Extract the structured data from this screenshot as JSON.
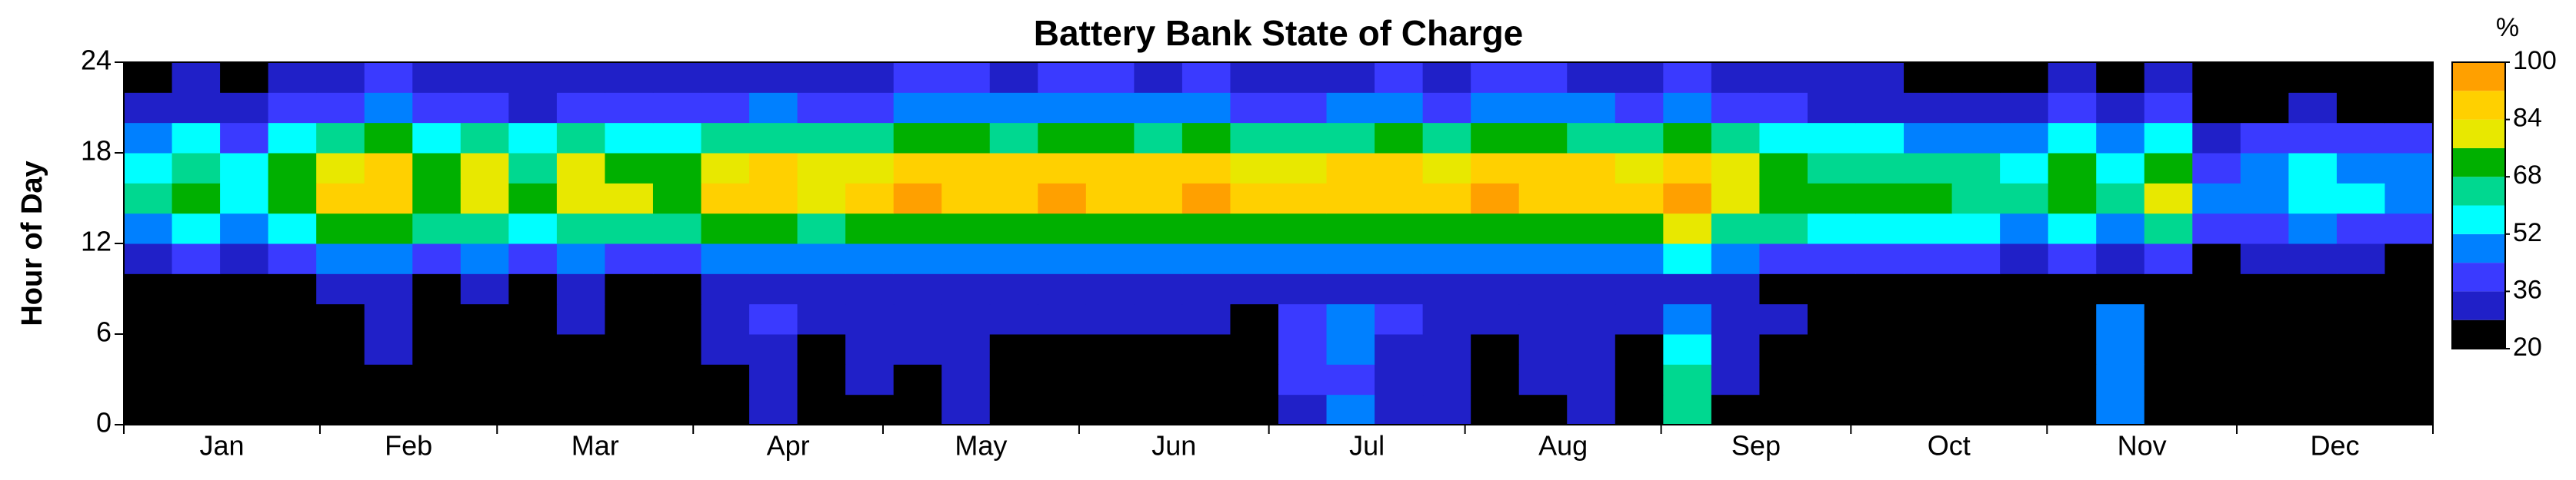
{
  "chart_data": {
    "type": "heatmap",
    "title": "Battery Bank State of Charge",
    "ylabel": "Hour of Day",
    "colorbar_label": "%",
    "xlim": [
      0,
      365
    ],
    "xticks": [
      0,
      31,
      59,
      90,
      120,
      151,
      181,
      212,
      243,
      273,
      304,
      334,
      365
    ],
    "categories": [
      "Jan",
      "Feb",
      "Mar",
      "Apr",
      "May",
      "Jun",
      "Jul",
      "Aug",
      "Sep",
      "Oct",
      "Nov",
      "Dec"
    ],
    "ylim": [
      0,
      24
    ],
    "yticks": [
      0,
      6,
      12,
      18,
      24
    ],
    "y_edges": [
      0,
      2,
      4,
      6,
      8,
      10,
      12,
      14,
      16,
      18,
      20,
      22,
      24
    ],
    "clim": [
      20,
      100
    ],
    "cticks": [
      20,
      36,
      52,
      68,
      84,
      100
    ],
    "levels": [
      20,
      28,
      36,
      44,
      52,
      60,
      68,
      76,
      84,
      92,
      100
    ],
    "colors": [
      "#000000",
      "#2020c8",
      "#3a3aff",
      "#0080ff",
      "#00ffff",
      "#00d890",
      "#00b000",
      "#e8e800",
      "#ffd000",
      "#ffa000",
      "#ff0000"
    ],
    "z": [
      [
        22,
        22,
        22,
        22,
        22,
        22,
        22,
        22,
        22,
        22,
        22,
        22,
        22,
        30,
        22,
        22,
        22,
        28,
        22,
        22,
        22,
        22,
        22,
        22,
        35,
        45,
        30,
        28,
        22,
        22,
        30,
        22,
        62,
        22,
        22,
        22,
        22,
        22,
        22,
        22,
        22,
        50,
        22,
        22,
        22,
        22,
        22,
        22
      ],
      [
        22,
        22,
        22,
        22,
        22,
        22,
        22,
        22,
        22,
        22,
        22,
        22,
        22,
        32,
        22,
        30,
        22,
        30,
        22,
        22,
        22,
        22,
        22,
        22,
        38,
        42,
        33,
        30,
        22,
        30,
        28,
        22,
        60,
        30,
        22,
        22,
        22,
        22,
        22,
        22,
        22,
        50,
        22,
        22,
        22,
        22,
        22,
        22
      ],
      [
        22,
        22,
        22,
        22,
        22,
        30,
        22,
        22,
        22,
        22,
        22,
        22,
        30,
        35,
        22,
        32,
        30,
        32,
        22,
        22,
        22,
        22,
        22,
        22,
        40,
        45,
        35,
        32,
        22,
        32,
        30,
        22,
        55,
        32,
        22,
        22,
        22,
        22,
        22,
        22,
        22,
        48,
        22,
        22,
        22,
        22,
        22,
        22
      ],
      [
        22,
        22,
        22,
        22,
        22,
        32,
        22,
        22,
        22,
        28,
        22,
        22,
        32,
        38,
        30,
        34,
        32,
        35,
        30,
        28,
        30,
        28,
        30,
        22,
        42,
        48,
        38,
        34,
        30,
        34,
        32,
        30,
        50,
        34,
        28,
        22,
        22,
        22,
        22,
        22,
        22,
        45,
        22,
        22,
        22,
        22,
        22,
        22
      ],
      [
        22,
        25,
        22,
        25,
        30,
        32,
        26,
        28,
        25,
        29,
        27,
        26,
        30,
        31,
        28,
        30,
        32,
        32,
        31,
        32,
        32,
        31,
        32,
        30,
        30,
        31,
        32,
        30,
        32,
        32,
        31,
        30,
        34,
        28,
        26,
        25,
        25,
        24,
        23,
        22,
        25,
        22,
        27,
        22,
        22,
        22,
        22,
        22
      ],
      [
        33,
        39,
        30,
        40,
        47,
        50,
        41,
        44,
        39,
        45,
        43,
        41,
        47,
        48,
        44,
        47,
        51,
        50,
        48,
        51,
        50,
        48,
        51,
        47,
        47,
        48,
        50,
        47,
        51,
        50,
        48,
        47,
        53,
        44,
        41,
        39,
        39,
        37,
        36,
        33,
        40,
        33,
        43,
        25,
        28,
        30,
        29,
        26
      ],
      [
        48,
        56,
        44,
        58,
        68,
        72,
        60,
        64,
        56,
        66,
        62,
        60,
        68,
        70,
        64,
        68,
        74,
        72,
        70,
        74,
        72,
        70,
        74,
        68,
        68,
        70,
        72,
        69,
        74,
        72,
        70,
        68,
        77,
        64,
        60,
        56,
        56,
        54,
        52,
        48,
        58,
        48,
        62,
        36,
        40,
        44,
        42,
        38
      ],
      [
        60,
        70,
        55,
        72,
        85,
        90,
        75,
        80,
        70,
        82,
        78,
        75,
        85,
        88,
        80,
        85,
        92,
        90,
        88,
        92,
        90,
        88,
        92,
        85,
        85,
        88,
        90,
        86,
        92,
        90,
        88,
        85,
        96,
        80,
        75,
        70,
        70,
        68,
        65,
        60,
        72,
        60,
        78,
        45,
        50,
        55,
        52,
        48
      ],
      [
        57,
        67,
        52,
        68,
        81,
        86,
        71,
        76,
        67,
        78,
        74,
        71,
        81,
        84,
        76,
        81,
        87,
        86,
        84,
        87,
        86,
        84,
        87,
        81,
        81,
        84,
        86,
        82,
        87,
        86,
        84,
        81,
        91,
        76,
        71,
        67,
        67,
        65,
        62,
        57,
        68,
        57,
        74,
        43,
        48,
        52,
        49,
        46
      ],
      [
        45,
        53,
        41,
        54,
        64,
        68,
        56,
        60,
        53,
        62,
        59,
        56,
        64,
        66,
        60,
        64,
        69,
        68,
        66,
        69,
        68,
        66,
        69,
        64,
        64,
        66,
        68,
        65,
        69,
        68,
        66,
        64,
        72,
        60,
        56,
        53,
        53,
        51,
        49,
        45,
        54,
        45,
        59,
        34,
        38,
        41,
        39,
        36
      ],
      [
        30,
        35,
        28,
        36,
        43,
        45,
        38,
        40,
        35,
        41,
        39,
        38,
        43,
        44,
        40,
        43,
        46,
        45,
        44,
        46,
        45,
        44,
        46,
        43,
        43,
        44,
        45,
        43,
        46,
        45,
        44,
        43,
        48,
        40,
        38,
        35,
        35,
        34,
        33,
        30,
        36,
        30,
        39,
        23,
        25,
        28,
        26,
        24
      ],
      [
        24,
        28,
        22,
        29,
        34,
        36,
        30,
        32,
        28,
        33,
        31,
        30,
        34,
        35,
        32,
        34,
        37,
        36,
        35,
        37,
        36,
        35,
        37,
        34,
        34,
        35,
        36,
        34,
        37,
        36,
        35,
        34,
        38,
        32,
        30,
        28,
        28,
        27,
        26,
        24,
        29,
        24,
        31,
        22,
        22,
        22,
        22,
        22
      ]
    ]
  }
}
